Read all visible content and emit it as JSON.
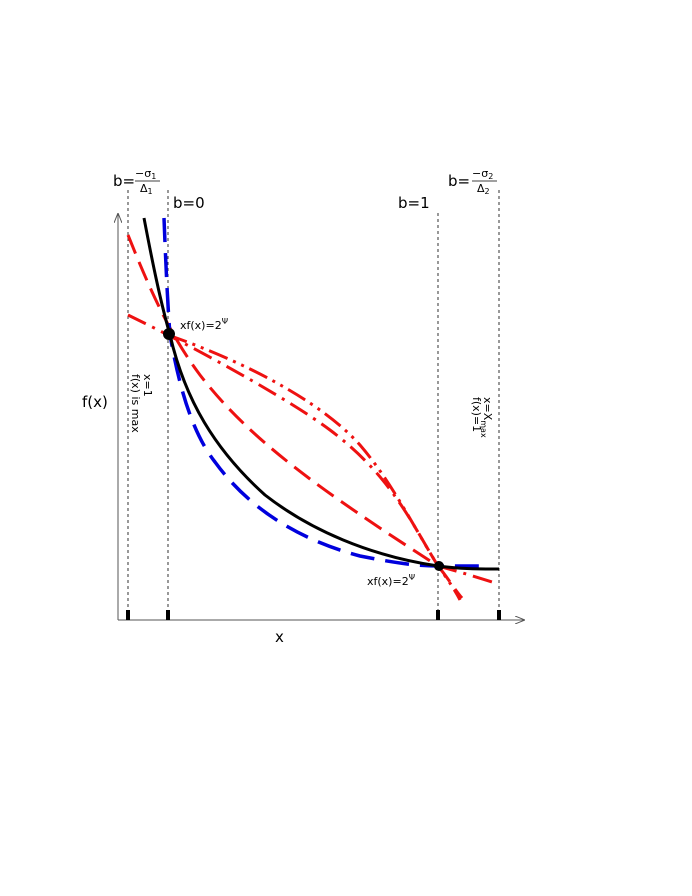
{
  "axes": {
    "x_label": "x",
    "y_label": "f(x)"
  },
  "column_labels": {
    "b_sigma1": {
      "prefix": "b=",
      "numerator": "−σ",
      "numerator_sub": "1",
      "denominator": "Δ",
      "denominator_sub": "1"
    },
    "b0": "b=0",
    "b1": "b=1",
    "b_sigma2": {
      "prefix": "b=",
      "numerator": "−σ",
      "numerator_sub": "2",
      "denominator": "Δ",
      "denominator_sub": "2"
    }
  },
  "annotations": {
    "left_point": {
      "prefix": "xf(x)=2",
      "sup": "Ψ"
    },
    "right_point": {
      "prefix": "xf(x)=2",
      "sup": "Ψ"
    },
    "left_vertical_line1": "x=1",
    "left_vertical_line2": "f(x) is max",
    "right_vertical_line1": "x=X",
    "right_vertical_line1_sub": "max",
    "right_vertical_line2": "f(x)=1"
  },
  "colors": {
    "main_curve": "#000000",
    "blue_curve": "#0000dd",
    "red_curves": "#ee1111"
  }
}
